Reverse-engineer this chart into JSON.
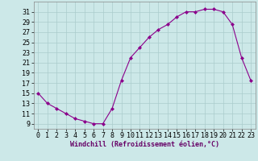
{
  "x": [
    0,
    1,
    2,
    3,
    4,
    5,
    6,
    7,
    8,
    9,
    10,
    11,
    12,
    13,
    14,
    15,
    16,
    17,
    18,
    19,
    20,
    21,
    22,
    23
  ],
  "y": [
    15,
    13,
    12,
    11,
    10,
    9.5,
    9,
    9,
    12,
    17.5,
    22,
    24,
    26,
    27.5,
    28.5,
    30,
    31,
    31,
    31.5,
    31.5,
    31,
    28.5,
    22,
    17.5
  ],
  "line_color": "#8b008b",
  "marker": "D",
  "marker_size": 2,
  "bg_color": "#cce8e8",
  "grid_color": "#aacccc",
  "xlabel": "Windchill (Refroidissement éolien,°C)",
  "xlabel_fontsize": 6,
  "tick_fontsize": 6,
  "ylim": [
    8,
    33
  ],
  "xlim": [
    -0.5,
    23.5
  ],
  "yticks": [
    9,
    11,
    13,
    15,
    17,
    19,
    21,
    23,
    25,
    27,
    29,
    31
  ],
  "xticks": [
    0,
    1,
    2,
    3,
    4,
    5,
    6,
    7,
    8,
    9,
    10,
    11,
    12,
    13,
    14,
    15,
    16,
    17,
    18,
    19,
    20,
    21,
    22,
    23
  ]
}
